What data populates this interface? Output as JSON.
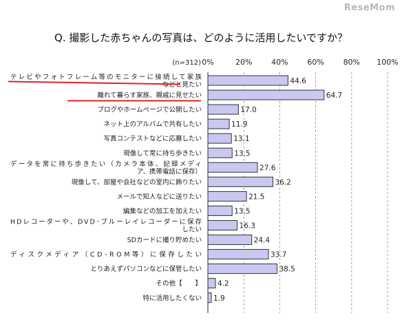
{
  "logo": "ReseMom",
  "title": "Q. 撮影した赤ちゃんの写真は、どのように活用したいですか？",
  "chart_data": {
    "type": "bar",
    "orientation": "horizontal",
    "n_label": "(n=312)",
    "xlim": [
      0,
      100
    ],
    "ticks": [
      "0%",
      "20%",
      "40%",
      "60%",
      "80%",
      "100%"
    ],
    "tick_values": [
      0,
      20,
      40,
      60,
      80,
      100
    ],
    "bar_color": "#c8c8f0",
    "bar_border": "#333333",
    "highlight_color": "#e02020",
    "highlighted_rows": [
      0,
      1
    ],
    "grid": "vertical dashed",
    "categories": [
      [
        "テレビやフォトフレーム等のモニターに接続して家族",
        "などと見たい"
      ],
      [
        "離れて暮らす家族、親戚に見せたい"
      ],
      [
        "ブログやホームページで公開したい"
      ],
      [
        "ネット上のアルバムで共有したい"
      ],
      [
        "写真コンテストなどに応募したい"
      ],
      [
        "現像して常に持ち歩きたい"
      ],
      [
        "データを常に持ち歩きたい（カメラ本体、記録メディ",
        "ア、携帯電話に保存）"
      ],
      [
        "現像して、部屋や会社などの室内に飾りたい"
      ],
      [
        "メールで知人などに送りたい"
      ],
      [
        "編集などの加工を加えたい"
      ],
      [
        "HDレコーダーや、DVD･ブルーレイレコーダーに保存",
        "したい"
      ],
      [
        "SDカードに撮り貯めたい"
      ],
      [
        "ディスクメディア（CD-ROM等）に保存したい"
      ],
      [
        "とりあえずパソコンなどに保管したい"
      ],
      [
        "その他【　　】"
      ],
      [
        "特に活用したくない"
      ]
    ],
    "values": [
      44.6,
      64.7,
      17.0,
      11.9,
      13.1,
      13.5,
      27.6,
      36.2,
      21.5,
      13.5,
      16.3,
      24.4,
      33.7,
      38.5,
      4.2,
      1.9
    ],
    "value_labels": [
      "44.6",
      "64.7",
      "17.0",
      "11.9",
      "13.1",
      "13.5",
      "27.6",
      "36.2",
      "21.5",
      "13.5",
      "16.3",
      "24.4",
      "33.7",
      "38.5",
      "4.2",
      "1.9"
    ]
  }
}
